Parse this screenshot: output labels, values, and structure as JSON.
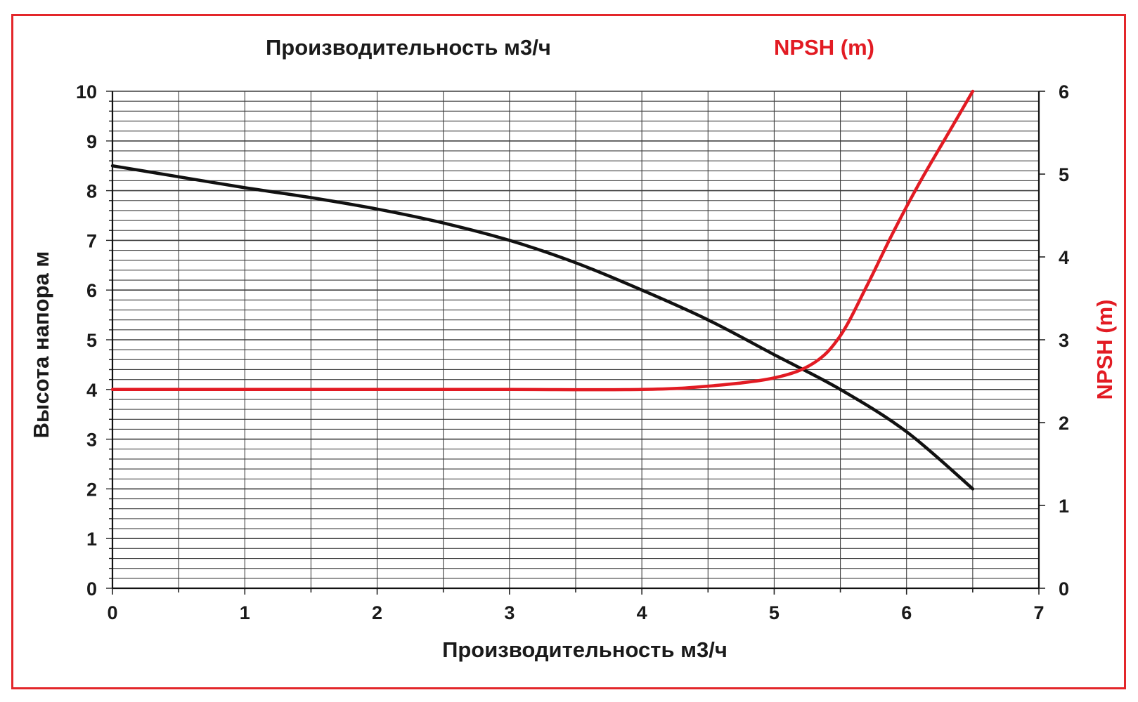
{
  "header": {
    "left_title": "Производительность м3/ч",
    "right_title": "NPSH (m)"
  },
  "chart_data": {
    "type": "line",
    "xlabel": "Производительность м3/ч",
    "ylabel": "Высота напора м",
    "y2label": "NPSH (m)",
    "xlim": [
      0,
      7
    ],
    "ylim": [
      0,
      10
    ],
    "y2lim": [
      0,
      6
    ],
    "xticks": [
      0,
      1,
      2,
      3,
      4,
      5,
      6,
      7
    ],
    "yticks": [
      0,
      1,
      2,
      3,
      4,
      5,
      6,
      7,
      8,
      9,
      10
    ],
    "y2ticks": [
      0,
      1,
      2,
      3,
      4,
      5,
      6
    ],
    "grid": true,
    "colors": {
      "head": "#111111",
      "npsh": "#e21b23",
      "frame": "#e3262a"
    },
    "series": [
      {
        "axis": "left",
        "points": [
          [
            0,
            8.5
          ],
          [
            0.5,
            8.28
          ],
          [
            1,
            8.06
          ],
          [
            1.5,
            7.86
          ],
          [
            2,
            7.63
          ],
          [
            2.5,
            7.35
          ],
          [
            3,
            7.0
          ],
          [
            3.5,
            6.55
          ],
          [
            4,
            6.0
          ],
          [
            4.5,
            5.4
          ],
          [
            5,
            4.7
          ],
          [
            5.5,
            4.0
          ],
          [
            6,
            3.15
          ],
          [
            6.5,
            2.0
          ]
        ]
      },
      {
        "axis": "right",
        "points": [
          [
            0,
            2.4
          ],
          [
            1,
            2.4
          ],
          [
            2,
            2.4
          ],
          [
            3,
            2.4
          ],
          [
            4,
            2.4
          ],
          [
            4.5,
            2.44
          ],
          [
            5,
            2.54
          ],
          [
            5.3,
            2.72
          ],
          [
            5.5,
            3.05
          ],
          [
            5.7,
            3.65
          ],
          [
            5.9,
            4.3
          ],
          [
            6.1,
            4.9
          ],
          [
            6.3,
            5.45
          ],
          [
            6.5,
            6.0
          ]
        ]
      }
    ]
  }
}
